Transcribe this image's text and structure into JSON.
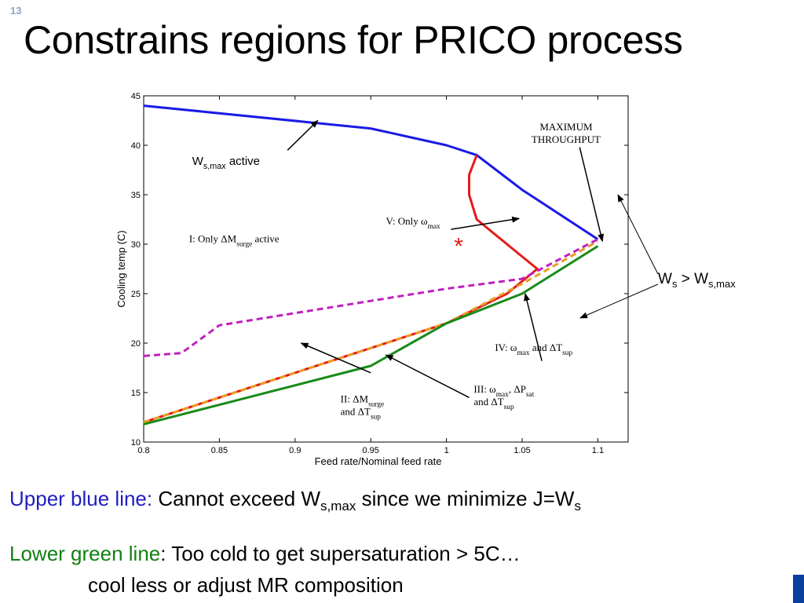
{
  "slide": {
    "number": "13",
    "title": "Constrains regions for PRICO process",
    "captions": {
      "line1": {
        "highlight": "Upper blue line:",
        "text_a": " Cannot exceed W",
        "sub_a": "s,max",
        "text_b": " since we minimize J=W",
        "sub_b": "s"
      },
      "line2": {
        "highlight": "Lower green line",
        "text": ": Too cold to get supersaturation > 5C…"
      },
      "line3": {
        "text": "cool less or adjust MR composition"
      }
    },
    "colors": {
      "blue_text": "#1f1fbf",
      "green_text": "#128012",
      "deco_bar": "#0a3fa0"
    }
  },
  "chart_data": {
    "type": "line",
    "xlabel": "Feed rate/Nominal feed rate",
    "ylabel": "Cooling temp (C)",
    "xlim": [
      0.8,
      1.12
    ],
    "ylim": [
      10,
      45
    ],
    "xticks": [
      "0.8",
      "0.85",
      "0.9",
      "0.95",
      "1",
      "1.05",
      "1.1"
    ],
    "yticks": [
      "10",
      "15",
      "20",
      "25",
      "30",
      "35",
      "40",
      "45"
    ],
    "grid": false,
    "series": [
      {
        "key": "blue",
        "color": "#1a1ae6",
        "style": "solid",
        "x": [
          0.8,
          0.95,
          1.0,
          1.02,
          1.05,
          1.1
        ],
        "y": [
          44.0,
          41.7,
          40.0,
          39.0,
          35.5,
          30.5
        ]
      },
      {
        "key": "red",
        "color": "#e61a1a",
        "style": "solid",
        "x": [
          0.8,
          0.9,
          1.0,
          1.04,
          1.06,
          1.04,
          1.02,
          1.015,
          1.015,
          1.02
        ],
        "y": [
          12.0,
          17.0,
          22.0,
          25.0,
          27.5,
          30.0,
          32.5,
          35.0,
          37.0,
          39.0
        ]
      },
      {
        "key": "orange",
        "color": "#e6a020",
        "style": "dashed",
        "x": [
          0.8,
          0.9,
          0.95,
          1.0,
          1.05,
          1.1
        ],
        "y": [
          12.0,
          17.0,
          19.5,
          22.0,
          26.0,
          30.3
        ]
      },
      {
        "key": "green",
        "color": "#1a8a1a",
        "style": "solid",
        "x": [
          0.8,
          0.95,
          1.0,
          1.05,
          1.1
        ],
        "y": [
          11.8,
          17.7,
          22.0,
          25.0,
          29.8
        ]
      },
      {
        "key": "magenta",
        "color": "#c020c0",
        "style": "dashed",
        "x": [
          0.8,
          0.825,
          0.85,
          1.0,
          1.05,
          1.1
        ],
        "y": [
          18.7,
          19.0,
          21.8,
          25.5,
          26.5,
          30.5
        ]
      }
    ],
    "annotations": [
      {
        "id": "ws-max-active",
        "main": "W",
        "sub": "s,max",
        "tail": " active",
        "x": 0.832,
        "y": 38.0,
        "arrow_from": [
          0.895,
          39.5
        ],
        "arrow_to": [
          0.915,
          42.5
        ]
      },
      {
        "id": "region-i",
        "main": "I: Only ΔM",
        "sub": "surge",
        "tail": " active",
        "x": 0.83,
        "y": 30.2
      },
      {
        "id": "region-v",
        "main": "V: Only ω",
        "sub": "max",
        "tail": "",
        "x": 0.96,
        "y": 32.0,
        "arrow_from": [
          1.003,
          31.5
        ],
        "arrow_to": [
          1.048,
          32.6
        ]
      },
      {
        "id": "region-ii",
        "main": "II: ΔM",
        "sub": "surge",
        "tail": "",
        "main2": "and ΔT",
        "sub2": "sup",
        "x": 0.93,
        "y": 14.0,
        "arrow_from": [
          0.95,
          17.0
        ],
        "arrow_to": [
          0.904,
          20.0
        ]
      },
      {
        "id": "region-iii",
        "main": "III: ω",
        "sub": "max",
        "tail": ", ΔP",
        "sub_b": "sat",
        "main2": "and ΔT",
        "sub2": "sup",
        "x": 1.018,
        "y": 15.0,
        "arrow_from": [
          1.015,
          14.5
        ],
        "arrow_to": [
          0.96,
          18.8
        ]
      },
      {
        "id": "region-iv",
        "main": "IV: ω",
        "sub": "max",
        "tail": " and ΔT",
        "sub_b": "sup",
        "x": 1.032,
        "y": 19.2,
        "arrow_from": [
          1.063,
          18.2
        ],
        "arrow_to": [
          1.052,
          25.0
        ]
      },
      {
        "id": "max-throughput",
        "main": "MAXIMUM",
        "main2": "THROUGHPUT",
        "x": 1.079,
        "y": 41.5,
        "arrow_from": [
          1.088,
          39.8
        ],
        "arrow_to": [
          1.103,
          30.3
        ]
      },
      {
        "id": "optimum-star",
        "main": "*",
        "x": 1.005,
        "y": 29.0
      }
    ],
    "outside_label": {
      "main": "W",
      "sub": "s",
      "tail": " > W",
      "sub_b": "s,max"
    }
  }
}
